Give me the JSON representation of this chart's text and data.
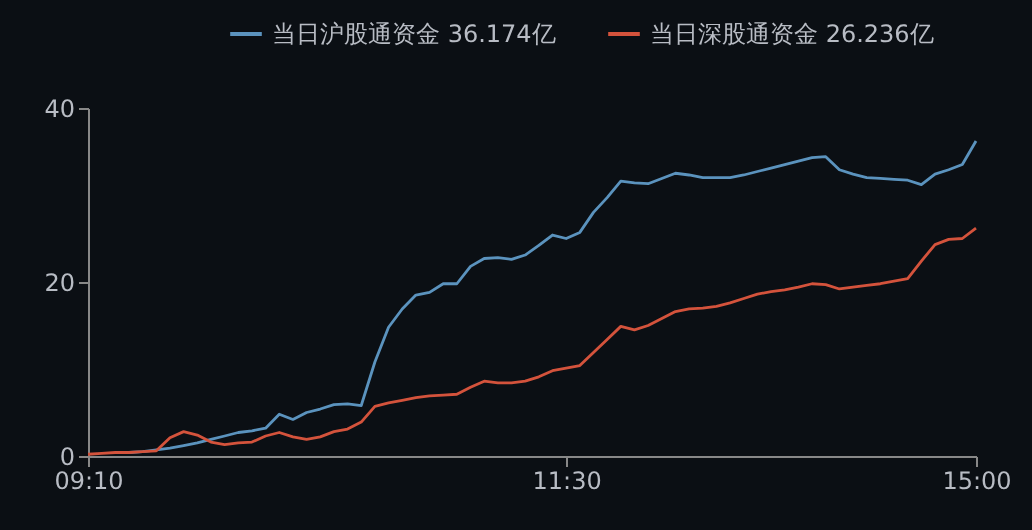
{
  "chart_data": {
    "type": "line",
    "categories": [
      "09:10",
      null,
      null,
      null,
      null,
      null,
      null,
      null,
      null,
      null,
      null,
      null,
      null,
      null,
      null,
      null,
      null,
      null,
      null,
      null,
      null,
      null,
      null,
      null,
      null,
      null,
      null,
      null,
      null,
      null,
      null,
      null,
      null,
      null,
      null,
      "11:30",
      null,
      null,
      null,
      null,
      null,
      null,
      null,
      null,
      null,
      null,
      null,
      null,
      null,
      null,
      null,
      null,
      null,
      null,
      null,
      null,
      null,
      null,
      null,
      null,
      null,
      null,
      null,
      null,
      null,
      "15:00"
    ],
    "ylim": [
      0,
      40
    ],
    "yticks": [
      0,
      20,
      40
    ],
    "grid": false,
    "legend": "top right",
    "marker": "none",
    "line_style": "solid",
    "series": [
      {
        "name": "当日沪股通资金 36.174亿",
        "color": "#5b93be",
        "values": [
          null,
          null,
          null,
          0.4,
          0.5,
          0.7,
          0.9,
          1.2,
          1.5,
          1.9,
          2.3,
          2.7,
          2.9,
          3.2,
          4.8,
          4.2,
          5.0,
          5.4,
          5.9,
          6.0,
          5.8,
          10.8,
          14.8,
          16.9,
          18.5,
          18.8,
          19.8,
          19.8,
          21.8,
          22.7,
          22.8,
          22.6,
          23.1,
          24.2,
          25.4,
          25.0,
          25.7,
          28.0,
          29.7,
          31.6,
          31.4,
          31.3,
          31.9,
          32.5,
          32.3,
          32.0,
          32.0,
          32.0,
          32.3,
          32.7,
          33.1,
          33.5,
          33.9,
          34.3,
          34.4,
          32.9,
          32.4,
          32.0,
          31.9,
          31.8,
          31.7,
          31.2,
          32.4,
          32.9,
          33.5,
          36.2
        ]
      },
      {
        "name": "当日深股通资金 26.236亿",
        "color": "#d4533c",
        "values": [
          0.2,
          0.3,
          0.4,
          0.4,
          0.5,
          0.6,
          2.1,
          2.8,
          2.4,
          1.6,
          1.3,
          1.5,
          1.6,
          2.3,
          2.7,
          2.2,
          1.9,
          2.2,
          2.8,
          3.1,
          3.9,
          5.7,
          6.1,
          6.4,
          6.7,
          6.9,
          7.0,
          7.1,
          7.9,
          8.6,
          8.4,
          8.4,
          8.6,
          9.1,
          9.8,
          10.1,
          10.4,
          11.9,
          13.4,
          14.9,
          14.5,
          15.0,
          15.8,
          16.6,
          16.9,
          17.0,
          17.2,
          17.6,
          18.1,
          18.6,
          18.9,
          19.1,
          19.4,
          19.8,
          19.7,
          19.2,
          19.4,
          19.6,
          19.8,
          20.1,
          20.4,
          22.4,
          24.3,
          24.9,
          25.0,
          26.2
        ]
      }
    ]
  }
}
